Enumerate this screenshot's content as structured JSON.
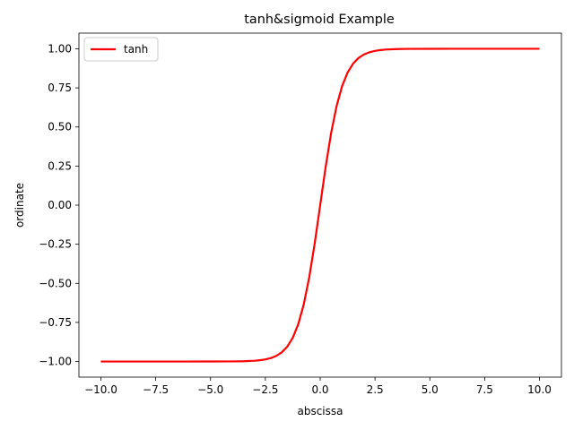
{
  "chart_data": {
    "type": "line",
    "title": "tanh&sigmoid Example",
    "xlabel": "abscissa",
    "ylabel": "ordinate",
    "xlim": [
      -11.0,
      11.0
    ],
    "ylim": [
      -1.1,
      1.1
    ],
    "xticks": [
      -10.0,
      -7.5,
      -5.0,
      -2.5,
      0.0,
      2.5,
      5.0,
      7.5,
      10.0
    ],
    "xtick_labels": [
      "−10.0",
      "−7.5",
      "−5.0",
      "−2.5",
      "0.0",
      "2.5",
      "5.0",
      "7.5",
      "10.0"
    ],
    "yticks": [
      -1.0,
      -0.75,
      -0.5,
      -0.25,
      0.0,
      0.25,
      0.5,
      0.75,
      1.0
    ],
    "ytick_labels": [
      "−1.00",
      "−0.75",
      "−0.50",
      "−0.25",
      "0.00",
      "0.25",
      "0.50",
      "0.75",
      "1.00"
    ],
    "grid": false,
    "legend_position": "top-left",
    "series": [
      {
        "name": "tanh",
        "color": "#ff0000",
        "x": [
          -10,
          -9,
          -8,
          -7,
          -6,
          -5,
          -4,
          -3.5,
          -3,
          -2.75,
          -2.5,
          -2.25,
          -2,
          -1.75,
          -1.5,
          -1.25,
          -1,
          -0.75,
          -0.5,
          -0.25,
          0,
          0.25,
          0.5,
          0.75,
          1,
          1.25,
          1.5,
          1.75,
          2,
          2.25,
          2.5,
          2.75,
          3,
          3.5,
          4,
          5,
          6,
          7,
          8,
          9,
          10
        ],
        "y": [
          -1.0,
          -1.0,
          -1.0,
          -1.0,
          -1.0,
          -0.9999,
          -0.9993,
          -0.9982,
          -0.9951,
          -0.9918,
          -0.9866,
          -0.978,
          -0.964,
          -0.9414,
          -0.9051,
          -0.8483,
          -0.7616,
          -0.6351,
          -0.4621,
          -0.2449,
          0.0,
          0.2449,
          0.4621,
          0.6351,
          0.7616,
          0.8483,
          0.9051,
          0.9414,
          0.964,
          0.978,
          0.9866,
          0.9918,
          0.9951,
          0.9982,
          0.9993,
          0.9999,
          1.0,
          1.0,
          1.0,
          1.0,
          1.0
        ]
      }
    ]
  }
}
